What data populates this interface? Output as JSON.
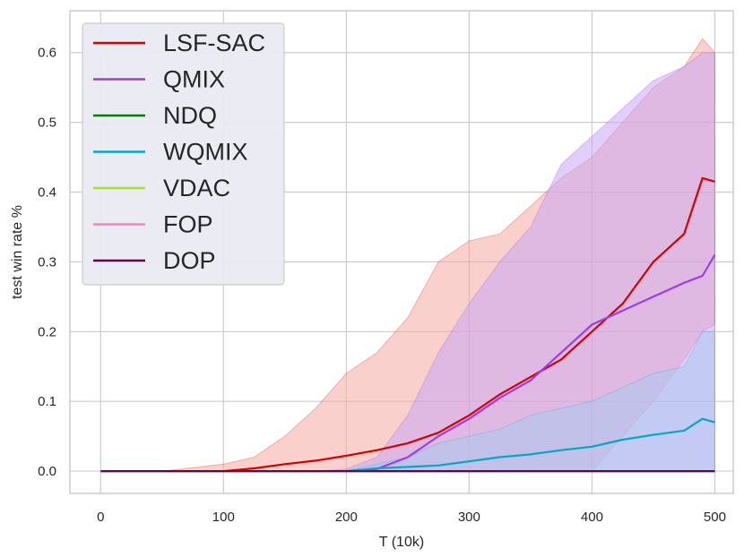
{
  "chart_data": {
    "type": "line",
    "title": "",
    "xlabel": "T (10k)",
    "ylabel": "test win rate %",
    "xlim": [
      -25,
      515
    ],
    "ylim": [
      -0.032,
      0.66
    ],
    "xticks": [
      0,
      100,
      200,
      300,
      400,
      500
    ],
    "yticks": [
      0.0,
      0.1,
      0.2,
      0.3,
      0.4,
      0.5,
      0.6
    ],
    "xtick_labels": [
      "0",
      "100",
      "200",
      "300",
      "400",
      "500"
    ],
    "ytick_labels": [
      "0.0",
      "0.1",
      "0.2",
      "0.3",
      "0.4",
      "0.5",
      "0.6"
    ],
    "grid": true,
    "legend_position": "top-left",
    "x": [
      0,
      50,
      100,
      125,
      150,
      175,
      200,
      225,
      250,
      275,
      300,
      325,
      350,
      375,
      400,
      425,
      450,
      475,
      490,
      500
    ],
    "series": [
      {
        "name": "LSF-SAC",
        "color": "#d40000",
        "values": [
          0.0,
          0.0,
          0.0,
          0.004,
          0.01,
          0.015,
          0.022,
          0.03,
          0.04,
          0.055,
          0.08,
          0.11,
          0.135,
          0.16,
          0.2,
          0.24,
          0.3,
          0.34,
          0.42,
          0.415
        ],
        "band_lower": [
          0.0,
          0.0,
          0.0,
          0.0,
          0.0,
          0.0,
          0.0,
          0.0,
          0.0,
          0.0,
          0.0,
          0.0,
          0.0,
          0.0,
          0.0,
          0.05,
          0.1,
          0.16,
          0.2,
          0.21
        ],
        "band_upper": [
          0.0,
          0.0,
          0.01,
          0.02,
          0.05,
          0.09,
          0.14,
          0.17,
          0.22,
          0.3,
          0.33,
          0.34,
          0.38,
          0.42,
          0.45,
          0.5,
          0.55,
          0.58,
          0.62,
          0.6
        ],
        "band_color": "#f4a9a0"
      },
      {
        "name": "QMIX",
        "color": "#9b3cf0",
        "values": [
          0.0,
          0.0,
          0.0,
          0.0,
          0.0,
          0.0,
          0.0,
          0.003,
          0.02,
          0.05,
          0.075,
          0.105,
          0.13,
          0.17,
          0.21,
          0.23,
          0.25,
          0.27,
          0.28,
          0.31
        ],
        "band_lower": [
          0.0,
          0.0,
          0.0,
          0.0,
          0.0,
          0.0,
          0.0,
          0.0,
          0.0,
          0.0,
          0.0,
          0.0,
          0.0,
          0.0,
          0.0,
          0.0,
          0.0,
          0.0,
          0.0,
          0.0
        ],
        "band_upper": [
          0.0,
          0.0,
          0.0,
          0.0,
          0.0,
          0.0,
          0.003,
          0.02,
          0.08,
          0.17,
          0.24,
          0.3,
          0.35,
          0.44,
          0.48,
          0.52,
          0.56,
          0.58,
          0.6,
          0.6
        ],
        "band_color": "#caa6f5"
      },
      {
        "name": "NDQ",
        "color": "#008000",
        "values": [
          0.0,
          0.0,
          0.0,
          0.0,
          0.0,
          0.0,
          0.0,
          0.0,
          0.0,
          0.0,
          0.0,
          0.0,
          0.0,
          0.0,
          0.0,
          0.0,
          0.0,
          0.0,
          0.0,
          0.0
        ]
      },
      {
        "name": "WQMIX",
        "color": "#00a8c6",
        "values": [
          0.0,
          0.0,
          0.0,
          0.0,
          0.0,
          0.0,
          0.0,
          0.004,
          0.006,
          0.008,
          0.014,
          0.02,
          0.024,
          0.03,
          0.035,
          0.045,
          0.052,
          0.058,
          0.075,
          0.07
        ],
        "band_lower": [
          0.0,
          0.0,
          0.0,
          0.0,
          0.0,
          0.0,
          0.0,
          0.0,
          0.0,
          0.0,
          0.0,
          0.0,
          0.0,
          0.0,
          0.0,
          0.0,
          0.0,
          0.0,
          0.0,
          0.0
        ],
        "band_upper": [
          0.0,
          0.0,
          0.0,
          0.0,
          0.0,
          0.0,
          0.0,
          0.01,
          0.02,
          0.04,
          0.05,
          0.06,
          0.08,
          0.09,
          0.1,
          0.12,
          0.14,
          0.15,
          0.2,
          0.2
        ],
        "band_color": "#a9c9ef"
      },
      {
        "name": "VDAC",
        "color": "#a6e22e",
        "values": [
          0.0,
          0.0,
          0.0,
          0.0,
          0.0,
          0.0,
          0.0,
          0.0,
          0.0,
          0.0,
          0.0,
          0.0,
          0.0,
          0.0,
          0.0,
          0.0,
          0.0,
          0.0,
          0.0,
          0.0
        ]
      },
      {
        "name": "FOP",
        "color": "#ff7fbf",
        "values": [
          0.0,
          0.0,
          0.0,
          0.0,
          0.0,
          0.0,
          0.0,
          0.0,
          0.0,
          0.0,
          0.0,
          0.0,
          0.0,
          0.0,
          0.0,
          0.0,
          0.0,
          0.0,
          0.0,
          0.0
        ]
      },
      {
        "name": "DOP",
        "color": "#6b0046",
        "values": [
          0.0,
          0.0,
          0.0,
          0.0,
          0.0,
          0.0,
          0.0,
          0.0,
          0.0,
          0.0,
          0.0,
          0.0,
          0.0,
          0.0,
          0.0,
          0.0,
          0.0,
          0.0,
          0.0,
          0.0
        ]
      }
    ]
  }
}
